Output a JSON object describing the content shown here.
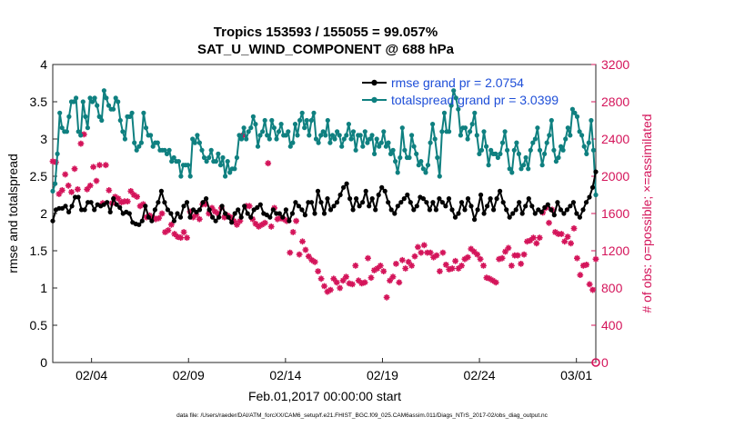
{
  "chart_data": {
    "type": "line",
    "title": "Tropics 153593 / 155055 = 99.057%",
    "subtitle": "SAT_U_WIND_COMPONENT @ 688 hPa",
    "xlabel": "Feb.01,2017 00:00:00 start",
    "ylabel": "rmse and totalspread",
    "y2label": "# of obs: o=possible; ×=assimilated",
    "footer": "data file: /Users/raeder/DAI/ATM_forcXX/CAM6_setup/f.e21.FHIST_BGC.f09_025.CAM6assim.011/Diags_NTrS_2017-02/obs_diag_output.nc",
    "xlim": [
      1,
      29
    ],
    "xticks": [
      3,
      8,
      13,
      18,
      23,
      28
    ],
    "xtick_labels": [
      "02/04",
      "02/09",
      "02/14",
      "02/19",
      "02/24",
      "03/01"
    ],
    "ylim": [
      0,
      4
    ],
    "yticks": [
      "0",
      "0.5",
      "1",
      "1.5",
      "2",
      "2.5",
      "3",
      "3.5",
      "4"
    ],
    "y2lim": [
      0,
      3200
    ],
    "y2ticks": [
      "0",
      "400",
      "800",
      "1200",
      "1600",
      "2000",
      "2400",
      "2800",
      "3200"
    ],
    "legend_location": "top-right",
    "colors": {
      "rmse": "#000000",
      "spread": "#0f8080",
      "obs": "#d4145a",
      "legend_text": "#1f4fd8"
    },
    "series": [
      {
        "name": "rmse grand pr = 2.0754",
        "axis": "left",
        "values": [
          1.9,
          2.05,
          2.07,
          2.07,
          2.1,
          2.02,
          2.1,
          2.22,
          2.22,
          2.05,
          2.05,
          2.15,
          2.15,
          2.05,
          2.12,
          2.1,
          2.12,
          2.15,
          2.02,
          2.2,
          2.12,
          2.08,
          2.0,
          2.02,
          2.0,
          1.88,
          1.86,
          1.85,
          1.9,
          2.1,
          1.95,
          1.9,
          2.05,
          2.15,
          2.3,
          2.15,
          2.05,
          2.0,
          1.9,
          2.0,
          1.95,
          2.1,
          2.15,
          1.95,
          2.05,
          2.02,
          2.05,
          2.15,
          2.2,
          2.05,
          1.95,
          1.9,
          1.95,
          2.1,
          2.0,
          1.95,
          1.88,
          2.0,
          2.05,
          1.95,
          2.1,
          2.0,
          1.95,
          2.05,
          2.08,
          2.12,
          2.0,
          1.98,
          1.95,
          2.05,
          2.0,
          2.0,
          1.95,
          2.05,
          1.9,
          2.0,
          2.15,
          2.1,
          2.05,
          1.98,
          2.15,
          2.15,
          2.0,
          2.3,
          2.15,
          2.0,
          2.2,
          2.05,
          2.1,
          2.15,
          2.25,
          2.35,
          2.4,
          2.2,
          2.05,
          2.2,
          2.1,
          2.15,
          2.3,
          2.1,
          2.2,
          2.05,
          2.25,
          2.35,
          2.3,
          2.15,
          2.05,
          2.0,
          2.1,
          2.15,
          2.2,
          2.25,
          2.15,
          2.05,
          2.1,
          2.22,
          2.2,
          2.15,
          2.05,
          2.15,
          2.05,
          2.2,
          2.15,
          2.1,
          2.2,
          2.05,
          1.95,
          2.0,
          2.15,
          2.05,
          2.2,
          2.1,
          1.92,
          2.05,
          2.25,
          2.0,
          2.1,
          2.2,
          2.05,
          2.2,
          2.3,
          2.15,
          2.05,
          1.95,
          2.0,
          2.05,
          2.15,
          2.0,
          2.1,
          2.2,
          2.1,
          2.0,
          2.05,
          2.02,
          2.08,
          2.12,
          2.05,
          1.98,
          2.15,
          2.05,
          2.0,
          2.05,
          2.1,
          2.15,
          2.0,
          1.95,
          2.05,
          2.15,
          2.22,
          2.35,
          2.56
        ]
      },
      {
        "name": "totalspread grand pr = 3.0399",
        "axis": "left",
        "values": [
          2.3,
          2.4,
          2.8,
          3.35,
          3.15,
          3.1,
          3.1,
          3.3,
          3.5,
          3.5,
          3.55,
          3.1,
          3.05,
          3.5,
          3.3,
          3.15,
          3.55,
          3.5,
          3.55,
          3.45,
          3.3,
          3.25,
          3.65,
          3.55,
          3.45,
          3.4,
          3.4,
          3.55,
          3.5,
          3.25,
          3.1,
          3.0,
          3.3,
          3.3,
          3.35,
          2.95,
          2.85,
          2.9,
          2.95,
          3.35,
          3.15,
          3.05,
          3.05,
          2.9,
          2.95,
          2.95,
          2.85,
          2.85,
          2.85,
          2.8,
          2.85,
          2.7,
          2.75,
          2.7,
          2.7,
          2.5,
          2.65,
          2.65,
          2.65,
          2.5,
          3.0,
          2.95,
          3.05,
          2.95,
          2.85,
          2.75,
          2.7,
          2.75,
          2.85,
          2.7,
          2.7,
          2.8,
          2.65,
          2.75,
          2.5,
          2.7,
          2.55,
          2.6,
          2.6,
          2.75,
          3.05,
          3.0,
          3.15,
          3.0,
          3.1,
          3.15,
          3.3,
          3.2,
          2.9,
          3.05,
          3.1,
          3.25,
          3.05,
          3.0,
          3.25,
          3.15,
          3.0,
          3.1,
          3.2,
          3.05,
          3.05,
          3.1,
          2.9,
          2.95,
          3.2,
          3.05,
          3.25,
          3.35,
          3.15,
          3.25,
          3.05,
          3.25,
          3.35,
          3.0,
          2.95,
          3.05,
          3.1,
          3.05,
          3.25,
          2.95,
          3.05,
          3.0,
          3.1,
          3.05,
          2.9,
          3.0,
          3.05,
          3.2,
          3.0,
          3.1,
          2.85,
          3.05,
          3.05,
          2.9,
          3.1,
          2.95,
          3.0,
          3.05,
          2.8,
          3.0,
          2.9,
          2.95,
          3.1,
          2.9,
          2.95,
          2.8,
          2.85,
          2.7,
          2.55,
          2.75,
          3.15,
          2.85,
          2.75,
          2.75,
          3.05,
          2.9,
          2.8,
          2.65,
          2.7,
          2.6,
          2.55,
          2.65,
          2.95,
          3.2,
          3.0,
          2.75,
          2.5,
          3.1,
          3.35,
          3.1,
          3.1,
          3.45,
          3.65,
          3.55,
          3.4,
          3.05,
          3.15,
          3.15,
          3.0,
          3.1,
          3.2,
          3.35,
          3.05,
          2.8,
          2.85,
          3.1,
          2.9,
          2.65,
          2.85,
          2.8,
          2.8,
          2.75,
          2.8,
          2.95,
          3.1,
          2.85,
          2.6,
          2.55,
          2.85,
          2.95,
          2.8,
          2.6,
          2.65,
          2.75,
          2.6,
          2.85,
          2.95,
          3.0,
          3.15,
          2.85,
          2.65,
          2.8,
          2.95,
          3.05,
          3.25,
          2.85,
          2.7,
          2.75,
          2.9,
          2.85,
          3.0,
          3.15,
          3.05,
          3.4,
          3.35,
          3.3,
          3.1,
          3.05,
          2.9,
          2.8,
          2.95,
          3.25,
          2.85,
          2.25
        ]
      },
      {
        "name": "# of obs assimilated",
        "axis": "right",
        "marker": "asterisk",
        "values": [
          2160,
          2150,
          1810,
          1850,
          2020,
          1900,
          1830,
          2080,
          1860,
          2350,
          2450,
          1860,
          1900,
          2100,
          1950,
          2120,
          1710,
          2120,
          1850,
          1710,
          1780,
          1760,
          1720,
          1730,
          1730,
          1840,
          1800,
          1780,
          1680,
          1700,
          1560,
          1580,
          1560,
          1540,
          1550,
          1600,
          1400,
          1420,
          1480,
          1380,
          1350,
          1340,
          1400,
          1340,
          1620,
          1560,
          1590,
          1540,
          1700,
          1700,
          1600,
          1660,
          1620,
          1600,
          1660,
          1560,
          1580,
          1560,
          1520,
          1480,
          1520,
          2440,
          1680,
          1680,
          1540,
          1490,
          1460,
          1480,
          1500,
          2140,
          1460,
          1660,
          1540,
          1550,
          1540,
          1520,
          1180,
          1400,
          1520,
          1160,
          1300,
          1210,
          1140,
          1100,
          1080,
          980,
          900,
          820,
          760,
          780,
          900,
          860,
          800,
          880,
          920,
          850,
          840,
          1040,
          880,
          850,
          860,
          1120,
          910,
          990,
          1010,
          1040,
          980,
          700,
          880,
          920,
          1060,
          860,
          1100,
          1010,
          1080,
          1040,
          1140,
          1240,
          1180,
          1260,
          1180,
          1180,
          1130,
          1150,
          980,
          1180,
          1050,
          1000,
          1010,
          1090,
          1010,
          1040,
          1110,
          1130,
          1220,
          1190,
          1160,
          1110,
          1040,
          910,
          900,
          880,
          860,
          1110,
          1120,
          1190,
          1230,
          1040,
          1150,
          1150,
          1060,
          1160,
          1300,
          1310,
          1340,
          1280,
          1340,
          1610,
          1660,
          1500,
          1640,
          1400,
          1380,
          1380,
          1300,
          1350,
          1280,
          1440,
          1120,
          940,
          1040,
          1050,
          840,
          780,
          1110
        ]
      }
    ]
  }
}
